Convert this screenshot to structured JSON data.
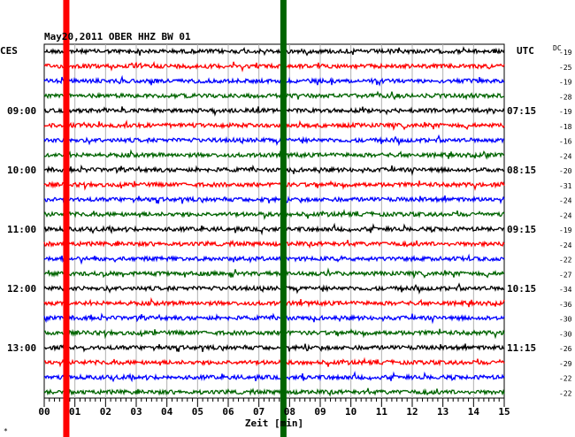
{
  "chart_data": {
    "type": "line",
    "title": "May20,2011   OBER HHZ BW 01",
    "xlabel": "Zeit [min]",
    "x_ticks": [
      "00",
      "01",
      "02",
      "03",
      "04",
      "05",
      "06",
      "07",
      "08",
      "09",
      "10",
      "11",
      "12",
      "13",
      "14",
      "15"
    ],
    "xlim": [
      0,
      15
    ],
    "left_axis_label": "CES",
    "right_axis_label": "UTC",
    "dc_label": "DC",
    "left_time_labels": [
      "09:00",
      "10:00",
      "11:00",
      "12:00",
      "13:00"
    ],
    "right_time_labels": [
      "07:15",
      "08:15",
      "09:15",
      "10:15",
      "11:15"
    ],
    "time_label_trace_index": [
      4,
      8,
      12,
      16,
      20
    ],
    "trace_colors": [
      "#000000",
      "#ff0000",
      "#0000ff",
      "#006400"
    ],
    "dc_offsets": [
      -19,
      -25,
      -19,
      -28,
      -19,
      -18,
      -16,
      -24,
      -20,
      -31,
      -24,
      -24,
      -19,
      -24,
      -22,
      -27,
      -34,
      -36,
      -30,
      -30,
      -26,
      -29,
      -22,
      -22
    ],
    "markers": [
      {
        "minute": 0.72,
        "color": "#ff0000"
      },
      {
        "minute": 7.8,
        "color": "#006400"
      }
    ]
  },
  "footer": {
    "corner_mark": "*"
  }
}
